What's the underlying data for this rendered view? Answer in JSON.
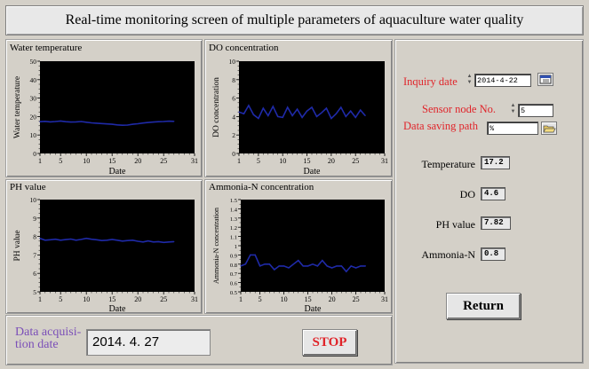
{
  "title": "Real-time monitoring screen of multiple parameters of aquaculture water quality",
  "charts": [
    {
      "key": "wt",
      "title": "Water temperature",
      "ylabel": "Water temperature",
      "xlabel": "Date",
      "ylim": [
        0,
        50
      ],
      "yticks": [
        "0",
        "10",
        "20",
        "30",
        "40",
        "50"
      ],
      "xticks": [
        "1",
        "5",
        "10",
        "15",
        "20",
        "25",
        "31"
      ]
    },
    {
      "key": "do",
      "title": "DO concentration",
      "ylabel": "DO concentration",
      "xlabel": "Date",
      "ylim": [
        0,
        10
      ],
      "yticks": [
        "0",
        "2",
        "4",
        "6",
        "8",
        "10"
      ],
      "xticks": [
        "1",
        "5",
        "10",
        "15",
        "20",
        "25",
        "31"
      ]
    },
    {
      "key": "ph",
      "title": "PH value",
      "ylabel": "PH value",
      "xlabel": "Date",
      "ylim": [
        5,
        10
      ],
      "yticks": [
        "5",
        "6",
        "7",
        "8",
        "9",
        "10"
      ],
      "xticks": [
        "1",
        "5",
        "10",
        "15",
        "20",
        "25",
        "31"
      ]
    },
    {
      "key": "nh",
      "title": "Ammonia-N concentration",
      "ylabel": "Ammonia-N concentration",
      "xlabel": "Date",
      "ylim": [
        0.5,
        1.5
      ],
      "yticks": [
        "0.5",
        "0.6",
        "0.7",
        "0.8",
        "0.9",
        "1",
        "1.1",
        "1.2",
        "1.3",
        "1.4",
        "1.5"
      ],
      "xticks": [
        "1",
        "5",
        "10",
        "15",
        "20",
        "25",
        "31"
      ]
    }
  ],
  "chart_data": [
    {
      "type": "line",
      "title": "Water temperature",
      "xlabel": "Date",
      "ylabel": "Water temperature",
      "xlim": [
        1,
        31
      ],
      "ylim": [
        0,
        50
      ],
      "x": [
        1,
        2,
        3,
        4,
        5,
        6,
        7,
        8,
        9,
        10,
        11,
        12,
        13,
        14,
        15,
        16,
        17,
        18,
        19,
        20,
        21,
        22,
        23,
        24,
        25,
        26,
        27
      ],
      "series": [
        {
          "values": [
            17.2,
            17.4,
            17.1,
            17.3,
            17.6,
            17.2,
            17.0,
            17.1,
            17.3,
            16.9,
            16.6,
            16.4,
            16.2,
            16.0,
            15.8,
            15.5,
            15.3,
            15.4,
            15.8,
            16.1,
            16.5,
            16.8,
            17.0,
            17.2,
            17.3,
            17.5,
            17.4
          ]
        }
      ]
    },
    {
      "type": "line",
      "title": "DO concentration",
      "xlabel": "Date",
      "ylabel": "DO concentration",
      "xlim": [
        1,
        31
      ],
      "ylim": [
        0,
        10
      ],
      "x": [
        1,
        2,
        3,
        4,
        5,
        6,
        7,
        8,
        9,
        10,
        11,
        12,
        13,
        14,
        15,
        16,
        17,
        18,
        19,
        20,
        21,
        22,
        23,
        24,
        25,
        26,
        27
      ],
      "series": [
        {
          "values": [
            4.5,
            4.3,
            5.2,
            4.2,
            3.8,
            4.9,
            4.1,
            5.1,
            4.0,
            3.9,
            5.0,
            4.1,
            4.8,
            3.9,
            4.6,
            5.0,
            4.0,
            4.4,
            4.9,
            3.8,
            4.3,
            5.0,
            4.0,
            4.6,
            3.9,
            4.7,
            4.1
          ]
        }
      ]
    },
    {
      "type": "line",
      "title": "PH value",
      "xlabel": "Date",
      "ylabel": "PH value",
      "xlim": [
        1,
        31
      ],
      "ylim": [
        5,
        10
      ],
      "x": [
        1,
        2,
        3,
        4,
        5,
        6,
        7,
        8,
        9,
        10,
        11,
        12,
        13,
        14,
        15,
        16,
        17,
        18,
        19,
        20,
        21,
        22,
        23,
        24,
        25,
        26,
        27
      ],
      "series": [
        {
          "values": [
            7.9,
            7.8,
            7.82,
            7.85,
            7.8,
            7.83,
            7.86,
            7.8,
            7.84,
            7.9,
            7.85,
            7.82,
            7.78,
            7.8,
            7.84,
            7.8,
            7.75,
            7.78,
            7.8,
            7.74,
            7.7,
            7.76,
            7.7,
            7.72,
            7.68,
            7.7,
            7.72
          ]
        }
      ]
    },
    {
      "type": "line",
      "title": "Ammonia-N concentration",
      "xlabel": "Date",
      "ylabel": "Ammonia-N concentration",
      "xlim": [
        1,
        31
      ],
      "ylim": [
        0.5,
        1.5
      ],
      "x": [
        1,
        2,
        3,
        4,
        5,
        6,
        7,
        8,
        9,
        10,
        11,
        12,
        13,
        14,
        15,
        16,
        17,
        18,
        19,
        20,
        21,
        22,
        23,
        24,
        25,
        26,
        27
      ],
      "series": [
        {
          "values": [
            0.78,
            0.8,
            0.9,
            0.9,
            0.78,
            0.8,
            0.8,
            0.74,
            0.78,
            0.78,
            0.76,
            0.8,
            0.84,
            0.78,
            0.78,
            0.8,
            0.78,
            0.84,
            0.78,
            0.76,
            0.78,
            0.78,
            0.72,
            0.78,
            0.76,
            0.78,
            0.78
          ]
        }
      ]
    }
  ],
  "side": {
    "inquiry_label": "Inquiry date",
    "inquiry_value": "2014-4-22",
    "sensor_label": "Sensor node No.",
    "sensor_value": "5",
    "path_label": "Data saving path",
    "path_value": "%",
    "temp_label": "Temperature",
    "temp_value": "17.2",
    "do_label": "DO",
    "do_value": "4.6",
    "ph_label": "PH value",
    "ph_value": "7.82",
    "nh_label": "Ammonia-N",
    "nh_value": "0.8",
    "return_label": "Return"
  },
  "bottom": {
    "acq_label_1": "Data acquisi-",
    "acq_label_2": "tion date",
    "acq_value": "2014. 4. 27",
    "stop_label": "STOP"
  },
  "colors": {
    "line": "#1f2aa8",
    "plot_bg": "#000000",
    "red": "#e0242a",
    "purple": "#7b4fb8"
  }
}
